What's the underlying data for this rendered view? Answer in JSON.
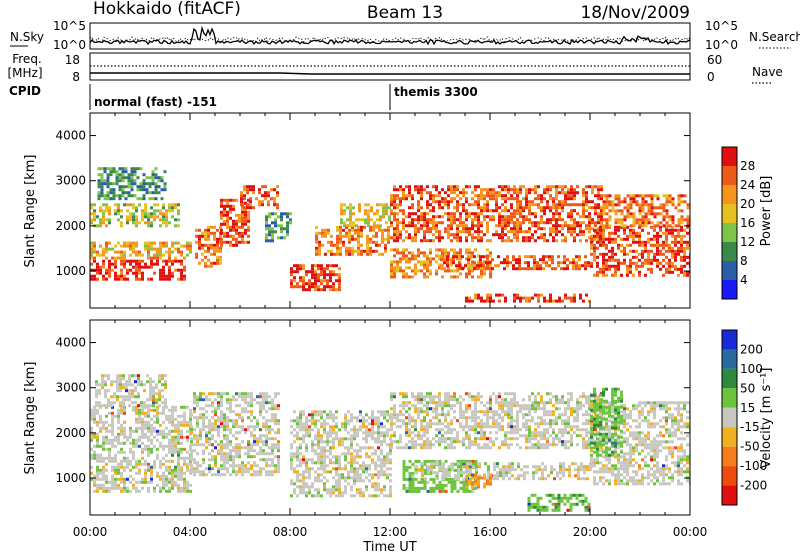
{
  "header": {
    "station": "Hokkaido (fitACF)",
    "beam": "Beam 13",
    "date": "18/Nov/2009"
  },
  "strip_panels": {
    "nsky_label": "N.Sky",
    "nsky_ticks": [
      "10^5",
      "10^0"
    ],
    "nsearch_label": "N.Search",
    "nsearch_ticks": [
      "10^5",
      "10^0"
    ],
    "freq_label_line1": "Freq.",
    "freq_label_line2": "[MHz]",
    "freq_ticks": [
      "18",
      "8"
    ],
    "nave_label": "Nave",
    "nave_ticks": [
      "60",
      "0"
    ],
    "cpid_label": "CPID",
    "cpid_entries": [
      {
        "text": "normal (fast) -151",
        "start_hour": 0
      },
      {
        "text": "themis 3300",
        "start_hour": 12
      }
    ]
  },
  "time_axis": {
    "label": "Time UT",
    "ticks": [
      "00:00",
      "04:00",
      "08:00",
      "12:00",
      "16:00",
      "20:00",
      "00:00"
    ],
    "range_hours": [
      0,
      24
    ]
  },
  "range_axis": {
    "label": "Slant Range [km]",
    "ticks": [
      "1000",
      "2000",
      "3000",
      "4000"
    ],
    "range_km": [
      180,
      4500
    ]
  },
  "power_scale": {
    "label": "Power [dB]",
    "ticks": [
      "4",
      "8",
      "12",
      "16",
      "20",
      "24",
      "28"
    ],
    "colors": [
      "#1a1aff",
      "#2a5fa8",
      "#3a8a4a",
      "#7fc44a",
      "#e8c020",
      "#f7941d",
      "#ef5a1a",
      "#e01010"
    ]
  },
  "velocity_scale": {
    "label": "Velocity [m s⁻¹]",
    "ticks": [
      "200",
      "100",
      "50",
      "15",
      "-15",
      "-50",
      "-100",
      "-200"
    ],
    "colors": [
      "#1a2ad8",
      "#2a6aa0",
      "#2e8a3a",
      "#6cc43c",
      "#c8c8c0",
      "#f0b020",
      "#f57d1a",
      "#f04a10",
      "#e01010"
    ]
  },
  "chart_data": [
    {
      "type": "heatmap",
      "title": "Power",
      "xlabel": "Time UT",
      "ylabel": "Slant Range [km]",
      "xlim_hours": [
        0,
        24
      ],
      "ylim_km": [
        180,
        4500
      ],
      "colorbar": {
        "label": "Power [dB]",
        "range": [
          0,
          32
        ]
      },
      "echo_regions": [
        {
          "t0": 0.0,
          "t1": 3.8,
          "r0": 800,
          "r1": 1250,
          "value": 29
        },
        {
          "t0": 0.0,
          "t1": 4.0,
          "r0": 1300,
          "r1": 1650,
          "value": 20
        },
        {
          "t0": 0.0,
          "t1": 3.5,
          "r0": 2000,
          "r1": 2500,
          "value": 16
        },
        {
          "t0": 0.3,
          "t1": 3.0,
          "r0": 2600,
          "r1": 3300,
          "value": 10
        },
        {
          "t0": 4.2,
          "t1": 5.2,
          "r0": 1100,
          "r1": 2000,
          "value": 24
        },
        {
          "t0": 5.2,
          "t1": 6.3,
          "r0": 1600,
          "r1": 2600,
          "value": 26
        },
        {
          "t0": 6.0,
          "t1": 7.5,
          "r0": 2400,
          "r1": 2900,
          "value": 27
        },
        {
          "t0": 7.0,
          "t1": 8.0,
          "r0": 1700,
          "r1": 2300,
          "value": 10
        },
        {
          "t0": 8.0,
          "t1": 10.0,
          "r0": 600,
          "r1": 1150,
          "value": 28
        },
        {
          "t0": 9.0,
          "t1": 12.0,
          "r0": 1400,
          "r1": 2000,
          "value": 24
        },
        {
          "t0": 10.0,
          "t1": 12.0,
          "r0": 2000,
          "r1": 2500,
          "value": 18
        },
        {
          "t0": 12.0,
          "t1": 20.5,
          "r0": 1700,
          "r1": 2900,
          "value": 26
        },
        {
          "t0": 12.0,
          "t1": 16.0,
          "r0": 900,
          "r1": 1500,
          "value": 22
        },
        {
          "t0": 14.0,
          "t1": 20.0,
          "r0": 1050,
          "r1": 1350,
          "value": 27
        },
        {
          "t0": 15.0,
          "t1": 20.0,
          "r0": 350,
          "r1": 500,
          "value": 28
        },
        {
          "t0": 20.0,
          "t1": 24.0,
          "r0": 900,
          "r1": 2000,
          "value": 27
        },
        {
          "t0": 20.5,
          "t1": 24.0,
          "r0": 2000,
          "r1": 2700,
          "value": 24
        }
      ]
    },
    {
      "type": "heatmap",
      "title": "Velocity",
      "xlabel": "Time UT",
      "ylabel": "Slant Range [km]",
      "xlim_hours": [
        0,
        24
      ],
      "ylim_km": [
        180,
        4500
      ],
      "colorbar": {
        "label": "Velocity [m s⁻¹]",
        "range": [
          -250,
          250
        ]
      },
      "echo_regions": [
        {
          "t0": 0.0,
          "t1": 4.0,
          "r0": 700,
          "r1": 2600,
          "value": 0
        },
        {
          "t0": 0.2,
          "t1": 3.0,
          "r0": 2600,
          "r1": 3300,
          "value": 0
        },
        {
          "t0": 4.0,
          "t1": 7.5,
          "r0": 1100,
          "r1": 2900,
          "value": 0
        },
        {
          "t0": 8.0,
          "t1": 12.0,
          "r0": 600,
          "r1": 2500,
          "value": 0
        },
        {
          "t0": 12.0,
          "t1": 20.5,
          "r0": 1700,
          "r1": 2900,
          "value": 0
        },
        {
          "t0": 12.5,
          "t1": 15.5,
          "r0": 700,
          "r1": 1400,
          "value": 30
        },
        {
          "t0": 13.0,
          "t1": 20.0,
          "r0": 1000,
          "r1": 1350,
          "value": 0
        },
        {
          "t0": 15.0,
          "t1": 16.0,
          "r0": 800,
          "r1": 1100,
          "value": -40
        },
        {
          "t0": 17.5,
          "t1": 20.0,
          "r0": 300,
          "r1": 650,
          "value": 40
        },
        {
          "t0": 20.0,
          "t1": 24.0,
          "r0": 900,
          "r1": 2700,
          "value": 0
        },
        {
          "t0": 20.0,
          "t1": 21.3,
          "r0": 1500,
          "r1": 3000,
          "value": 40
        }
      ]
    }
  ]
}
